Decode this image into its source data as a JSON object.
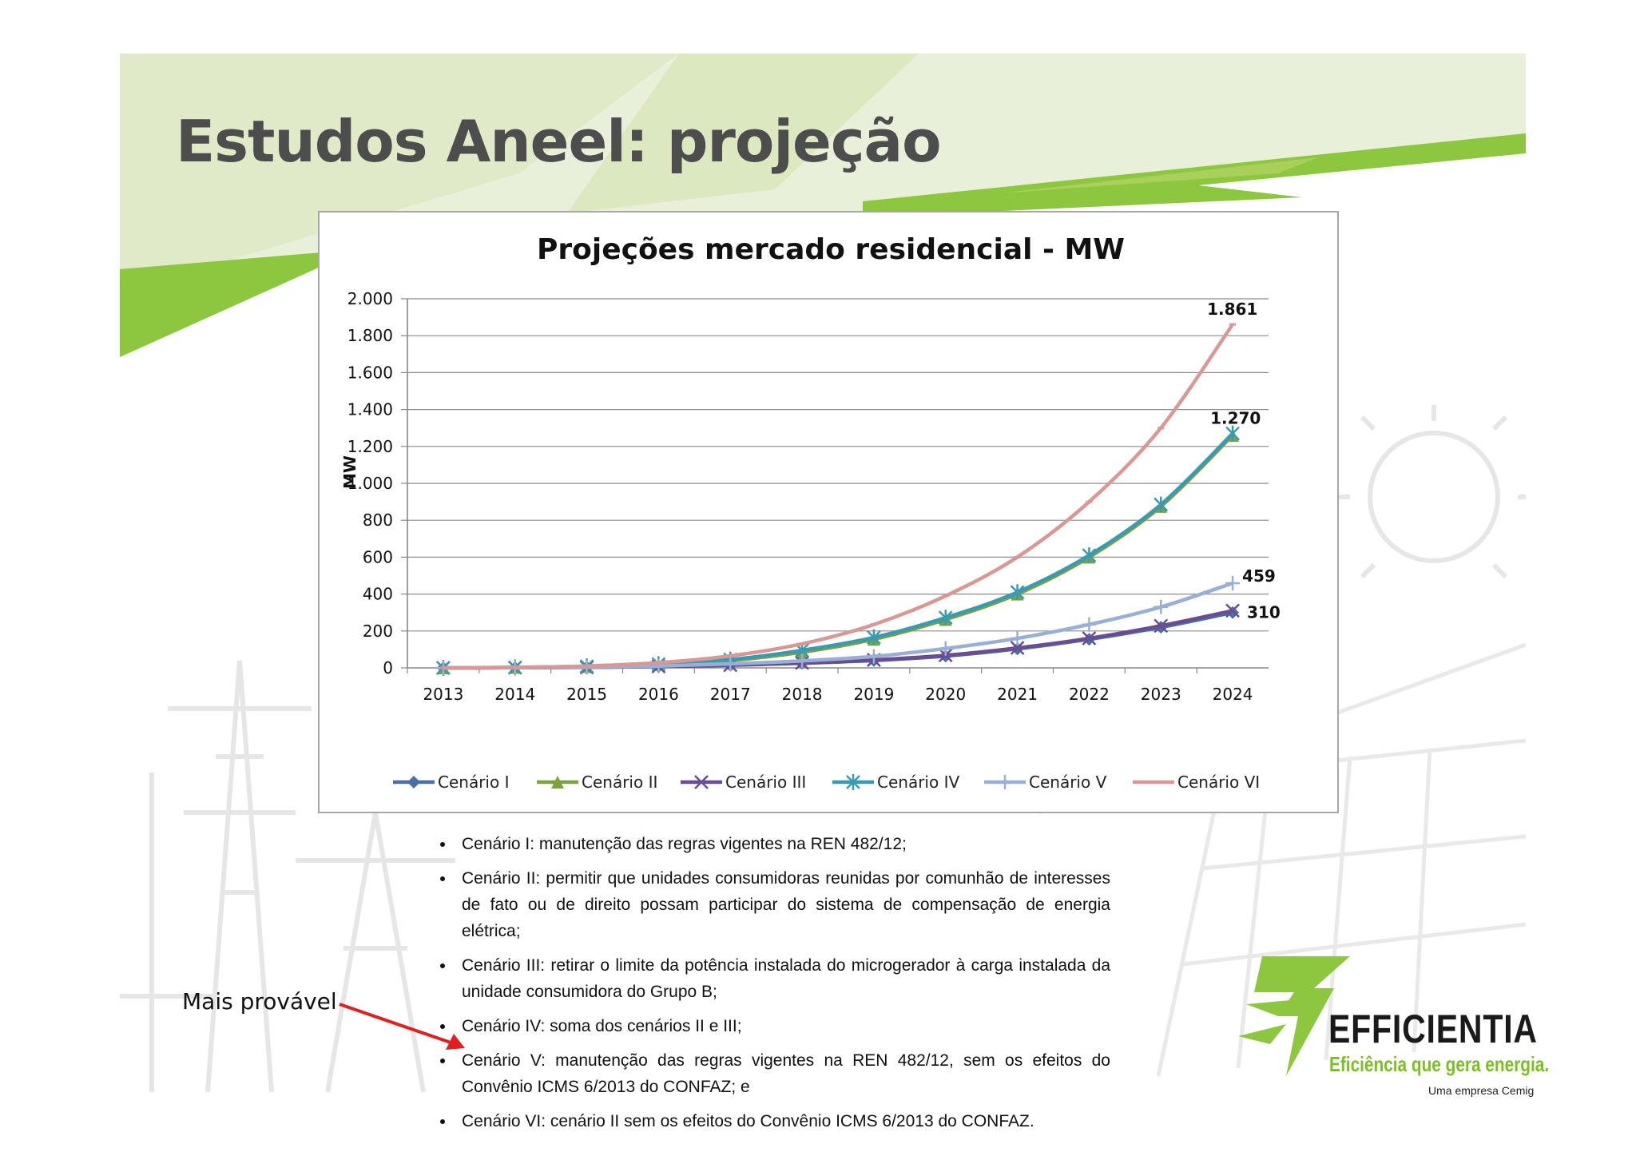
{
  "slide": {
    "title": "Estudos Aneel: projeção"
  },
  "chart_data": {
    "type": "line",
    "title": "Projeções mercado residencial - MW",
    "xlabel": "",
    "ylabel": "MW",
    "ylim": [
      0,
      2000
    ],
    "yticks": [
      0,
      200,
      400,
      600,
      800,
      1000,
      1200,
      1400,
      1600,
      1800,
      2000
    ],
    "ytick_labels": [
      "0",
      "200",
      "400",
      "600",
      "800",
      "1.000",
      "1.200",
      "1.400",
      "1.600",
      "1.800",
      "2.000"
    ],
    "categories": [
      "2013",
      "2014",
      "2015",
      "2016",
      "2017",
      "2018",
      "2019",
      "2020",
      "2021",
      "2022",
      "2023",
      "2024"
    ],
    "grid": "horizontal",
    "legend": "bottom",
    "series": [
      {
        "name": "Cenário I",
        "color": "#4a6fa5",
        "marker": "diamond",
        "values": [
          0,
          1,
          3,
          7,
          14,
          25,
          40,
          64,
          103,
          155,
          220,
          300
        ]
      },
      {
        "name": "Cenário II",
        "color": "#7ba23f",
        "marker": "triangle",
        "values": [
          0,
          2,
          7,
          18,
          40,
          85,
          155,
          262,
          400,
          600,
          875,
          1260
        ]
      },
      {
        "name": "Cenário III",
        "color": "#6a4c93",
        "marker": "x",
        "values": [
          0,
          1,
          3,
          8,
          15,
          27,
          43,
          68,
          108,
          160,
          228,
          310
        ]
      },
      {
        "name": "Cenário IV",
        "color": "#3a9bb0",
        "marker": "star",
        "values": [
          0,
          2,
          8,
          20,
          45,
          95,
          165,
          272,
          410,
          610,
          885,
          1270
        ]
      },
      {
        "name": "Cenário V",
        "color": "#9aafd6",
        "marker": "plus",
        "values": [
          0,
          1,
          4,
          10,
          22,
          38,
          62,
          105,
          160,
          235,
          330,
          459
        ]
      },
      {
        "name": "Cenário VI",
        "color": "#d99795",
        "marker": "dash",
        "values": [
          0,
          3,
          10,
          28,
          65,
          130,
          235,
          390,
          600,
          900,
          1300,
          1861
        ]
      }
    ],
    "data_labels": [
      {
        "series": "Cenário VI",
        "category": "2024",
        "text": "1.861"
      },
      {
        "series": "Cenário IV",
        "category": "2024",
        "text": "1.270"
      },
      {
        "series": "Cenário V",
        "category": "2024",
        "text": "459"
      },
      {
        "series": "Cenário III",
        "category": "2024",
        "text": "310"
      }
    ]
  },
  "notes": {
    "bullets": [
      "Cenário I: manutenção das regras vigentes na REN 482/12;",
      "Cenário II: permitir que unidades consumidoras reunidas por comunhão de interesses de fato ou de direito possam participar do sistema de compensação de energia elétrica;",
      " Cenário III: retirar o limite da potência instalada do microgerador à carga instalada da unidade consumidora do Grupo B;",
      "Cenário IV: soma dos cenários II e III;",
      "Cenário V: manutenção das regras vigentes na REN 482/12, sem os efeitos do Convênio ICMS 6/2013 do CONFAZ; e",
      "Cenário VI: cenário II sem os efeitos do Convênio ICMS 6/2013 do CONFAZ."
    ],
    "annotation": "Mais provável"
  },
  "logo": {
    "name": "EFFICIENTIA",
    "tagline": "Eficiência que gera energia.",
    "subtitle": "Uma empresa Cemig"
  }
}
